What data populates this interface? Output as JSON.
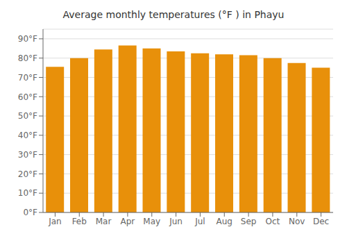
{
  "chart_data": {
    "type": "bar",
    "title": "Average monthly temperatures (°F ) in Phayu",
    "categories": [
      "Jan",
      "Feb",
      "Mar",
      "Apr",
      "May",
      "Jun",
      "Jul",
      "Aug",
      "Sep",
      "Oct",
      "Nov",
      "Dec"
    ],
    "values": [
      75.5,
      80.0,
      84.5,
      86.5,
      85.0,
      83.5,
      82.5,
      82.0,
      81.5,
      80.0,
      77.5,
      75.0
    ],
    "color": "#E8900A",
    "ylim": [
      0,
      95
    ],
    "yticks": [
      {
        "value": 0,
        "label": "0°F"
      },
      {
        "value": 10,
        "label": "10°F"
      },
      {
        "value": 20,
        "label": "20°F"
      },
      {
        "value": 30,
        "label": "30°F"
      },
      {
        "value": 40,
        "label": "40°F"
      },
      {
        "value": 50,
        "label": "50°F"
      },
      {
        "value": 60,
        "label": "60°F"
      },
      {
        "value": 70,
        "label": "70°F"
      },
      {
        "value": 80,
        "label": "80°F"
      },
      {
        "value": 90,
        "label": "90°F"
      }
    ],
    "grid": true
  }
}
